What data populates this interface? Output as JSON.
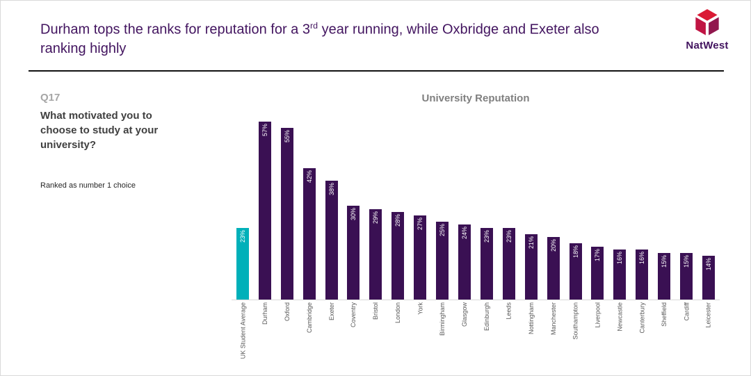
{
  "header": {
    "title_part1": "Durham tops the ranks for reputation for a 3",
    "title_sup": "rd",
    "title_part2": " year running, while Oxbridge and Exeter also ranking highly",
    "brand": "NatWest"
  },
  "question_panel": {
    "number": "Q17",
    "question": "What motivated you to choose to study at your university?",
    "note": "Ranked as number 1 choice"
  },
  "chart_data": {
    "type": "bar",
    "title": "University Reputation",
    "categories": [
      "UK Student Average",
      "Durham",
      "Oxford",
      "Cambridge",
      "Exeter",
      "Coventry",
      "Bristol",
      "London",
      "York",
      "Birmingham",
      "Glasgow",
      "Edinburgh",
      "Leeds",
      "Nottingham",
      "Manchester",
      "Southampton",
      "Liverpool",
      "Newcastle",
      "Canterbury",
      "Sheffield",
      "Cardiff",
      "Leicester"
    ],
    "values": [
      23,
      57,
      55,
      42,
      38,
      30,
      29,
      28,
      27,
      25,
      24,
      23,
      23,
      21,
      20,
      18,
      17,
      16,
      16,
      15,
      15,
      14
    ],
    "value_suffix": "%",
    "ylim": [
      0,
      60
    ],
    "grid": false,
    "legend": "none",
    "value_labels_inside_bars": true,
    "highlight_index": 0,
    "colors": {
      "bar_default": "#3a1053",
      "bar_highlight": "#00b0b9",
      "value_label": "#ffffff",
      "axis_label": "#595959",
      "axis_line": "#d9d9d9",
      "title": "#808080"
    }
  }
}
